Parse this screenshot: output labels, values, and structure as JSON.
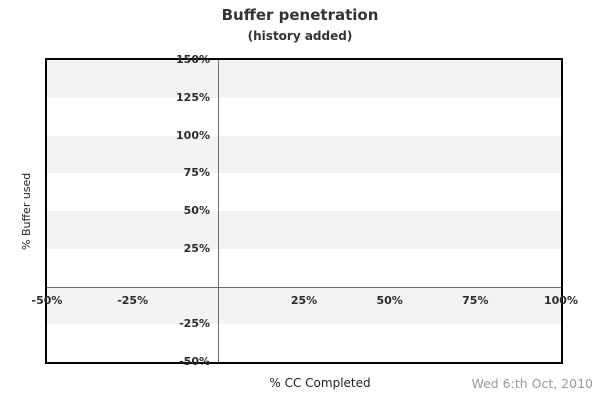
{
  "chart_data": {
    "type": "line",
    "title": "Buffer penetration",
    "subtitle": "(history added)",
    "xlabel": "% CC Completed",
    "ylabel": "% Buffer used",
    "xlim": [
      -50,
      100
    ],
    "ylim": [
      -50,
      150
    ],
    "grid": "horizontal-stripes",
    "legend": "none",
    "series": [],
    "x_ticks": [
      {
        "value": -50,
        "label": "-50%"
      },
      {
        "value": -25,
        "label": "-25%"
      },
      {
        "value": 25,
        "label": "25%"
      },
      {
        "value": 50,
        "label": "50%"
      },
      {
        "value": 75,
        "label": "75%"
      },
      {
        "value": 100,
        "label": "100%"
      }
    ],
    "y_ticks": [
      {
        "value": 150,
        "label": "150%"
      },
      {
        "value": 125,
        "label": "125%"
      },
      {
        "value": 100,
        "label": "100%"
      },
      {
        "value": 75,
        "label": "75%"
      },
      {
        "value": 50,
        "label": "50%"
      },
      {
        "value": 25,
        "label": "25%"
      },
      {
        "value": -25,
        "label": "-25%"
      },
      {
        "value": -50,
        "label": "-50%"
      }
    ],
    "stripes": [
      {
        "from": 150,
        "to": 125,
        "color": "#f3f3f3"
      },
      {
        "from": 125,
        "to": 100,
        "color": "#ffffff"
      },
      {
        "from": 100,
        "to": 75,
        "color": "#f3f3f3"
      },
      {
        "from": 75,
        "to": 50,
        "color": "#ffffff"
      },
      {
        "from": 50,
        "to": 25,
        "color": "#f3f3f3"
      },
      {
        "from": 25,
        "to": 0,
        "color": "#ffffff"
      },
      {
        "from": 0,
        "to": -25,
        "color": "#f3f3f3"
      },
      {
        "from": -25,
        "to": -50,
        "color": "#ffffff"
      }
    ],
    "zero_lines": {
      "x": 0,
      "y": 0
    },
    "colors": {
      "axis_line": "#6b6b6b",
      "plot_border": "#000000",
      "tick_text": "#2b2b2b",
      "title_text": "#333333",
      "date_text": "#999999"
    }
  },
  "footer": {
    "date": "Wed 6:th Oct, 2010"
  }
}
